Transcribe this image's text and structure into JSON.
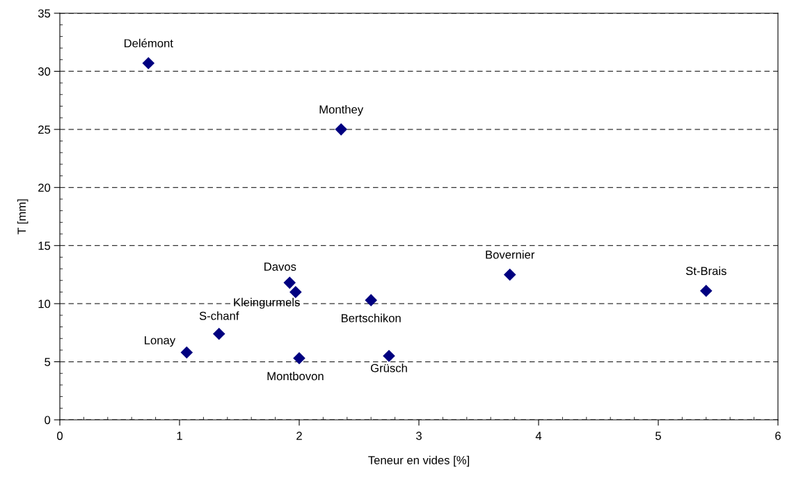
{
  "chart_data": {
    "type": "scatter",
    "xlabel": "Teneur en vides [%]",
    "ylabel": "T [mm]",
    "x": [
      0.74,
      2.35,
      3.76,
      5.4,
      1.92,
      1.97,
      2.6,
      1.33,
      1.06,
      2.0,
      2.75
    ],
    "series": [
      {
        "color": "#000080",
        "values": [
          30.7,
          25.0,
          12.5,
          11.1,
          11.8,
          11.0,
          10.3,
          7.4,
          5.8,
          5.3,
          5.5
        ]
      }
    ],
    "marker": "diamond",
    "grid": "y",
    "xlim": [
      0,
      6
    ],
    "xticks": [
      0,
      1,
      2,
      3,
      4,
      5,
      6
    ],
    "ylim": [
      0,
      35
    ],
    "yticks": [
      0,
      5,
      10,
      15,
      20,
      25,
      30,
      35
    ],
    "annotations": [
      {
        "text": "Delémont",
        "x": 0.74,
        "y": 30.7
      },
      {
        "text": "Monthey",
        "x": 2.35,
        "y": 25.0
      },
      {
        "text": "Bovernier",
        "x": 3.76,
        "y": 12.5
      },
      {
        "text": "St-Brais",
        "x": 5.4,
        "y": 11.1
      },
      {
        "text": "Davos",
        "x": 1.92,
        "y": 11.8
      },
      {
        "text": "Kleingurmels",
        "x": 1.97,
        "y": 11.0
      },
      {
        "text": "Bertschikon",
        "x": 2.6,
        "y": 10.3
      },
      {
        "text": "S-chanf",
        "x": 1.33,
        "y": 7.4
      },
      {
        "text": "Lonay",
        "x": 1.06,
        "y": 5.8
      },
      {
        "text": "Montbovon",
        "x": 2.0,
        "y": 5.3
      },
      {
        "text": "Grüsch",
        "x": 2.75,
        "y": 5.5
      }
    ]
  }
}
